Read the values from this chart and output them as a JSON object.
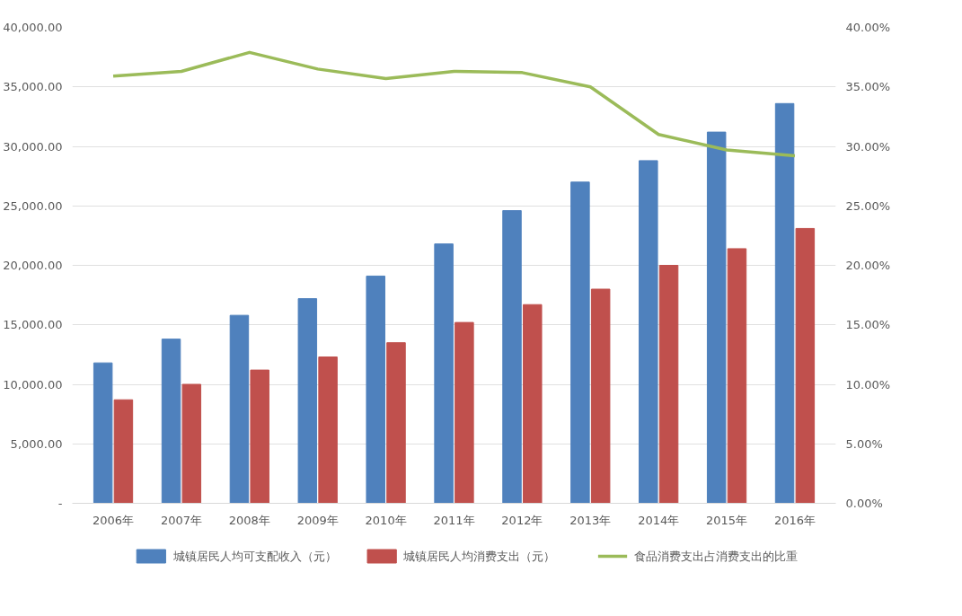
{
  "chart_data": {
    "type": "bar",
    "categories": [
      "2006年",
      "2007年",
      "2008年",
      "2009年",
      "2010年",
      "2011年",
      "2012年",
      "2013年",
      "2014年",
      "2015年",
      "2016年"
    ],
    "series": [
      {
        "name": "城镇居民人均可支配收入（元）",
        "color": "#4f81bd",
        "values": [
          11800,
          13800,
          15800,
          17200,
          19100,
          21800,
          24600,
          27000,
          28800,
          31200,
          33600
        ]
      },
      {
        "name": "城镇居民人均消费支出（元）",
        "color": "#c0504d",
        "values": [
          8700,
          10000,
          11200,
          12300,
          13500,
          15200,
          16700,
          18000,
          20000,
          21400,
          23100
        ]
      },
      {
        "name": "食品消费支出占消费支出的比重",
        "color": "#9bbb59",
        "type": "line",
        "axis": "y2",
        "values": [
          35.9,
          36.3,
          37.9,
          36.5,
          35.7,
          36.3,
          36.2,
          35.0,
          31.0,
          29.7,
          29.2
        ]
      }
    ],
    "ylim": [
      0,
      40000
    ],
    "yticks": [
      {
        "value": 0,
        "label": "-"
      },
      {
        "value": 5000,
        "label": "5,000.00"
      },
      {
        "value": 10000,
        "label": "10,000.00"
      },
      {
        "value": 15000,
        "label": "15,000.00"
      },
      {
        "value": 20000,
        "label": "20,000.00"
      },
      {
        "value": 25000,
        "label": "25,000.00"
      },
      {
        "value": 30000,
        "label": "30,000.00"
      },
      {
        "value": 35000,
        "label": "35,000.00"
      },
      {
        "value": 40000,
        "label": "40,000.00"
      }
    ],
    "y2lim": [
      0,
      40
    ],
    "y2ticks": [
      {
        "value": 0,
        "label": "0.00%"
      },
      {
        "value": 5,
        "label": "5.00%"
      },
      {
        "value": 10,
        "label": "10.00%"
      },
      {
        "value": 15,
        "label": "15.00%"
      },
      {
        "value": 20,
        "label": "20.00%"
      },
      {
        "value": 25,
        "label": "25.00%"
      },
      {
        "value": 30,
        "label": "30.00%"
      },
      {
        "value": 35,
        "label": "35.00%"
      },
      {
        "value": 40,
        "label": "40.00%"
      }
    ],
    "grid": "y",
    "legend": "bottom",
    "marker": "none",
    "line_style": "solid"
  }
}
